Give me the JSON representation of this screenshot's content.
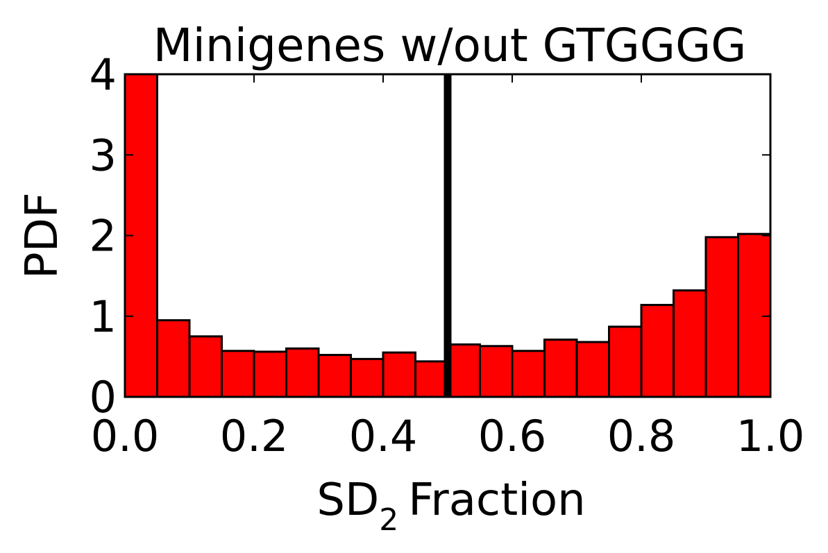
{
  "chart_data": {
    "type": "bar",
    "title": "Minigenes w/out GTGGGG",
    "xlabel": {
      "main": "SD",
      "sub": "2",
      "rest": "Fraction"
    },
    "ylabel": "PDF",
    "xlim": [
      0,
      1
    ],
    "ylim": [
      0,
      4
    ],
    "xticks": [
      "0.0",
      "0.2",
      "0.4",
      "0.6",
      "0.8",
      "1.0"
    ],
    "yticks": [
      "0",
      "1",
      "2",
      "3",
      "4"
    ],
    "bin_edges": [
      0.0,
      0.05,
      0.1,
      0.15,
      0.2,
      0.25,
      0.3,
      0.35,
      0.4,
      0.45,
      0.5,
      0.55,
      0.6,
      0.65,
      0.7,
      0.75,
      0.8,
      0.85,
      0.9,
      0.95,
      1.0
    ],
    "values": [
      4.0,
      0.95,
      0.75,
      0.57,
      0.56,
      0.6,
      0.52,
      0.47,
      0.55,
      0.44,
      0.65,
      0.63,
      0.57,
      0.71,
      0.68,
      0.87,
      1.14,
      1.32,
      1.98,
      2.02
    ],
    "bar_color": "#ff0000",
    "edge_color": "#000000",
    "vline": {
      "x": 0.5,
      "color": "#000000"
    },
    "grid": false
  }
}
